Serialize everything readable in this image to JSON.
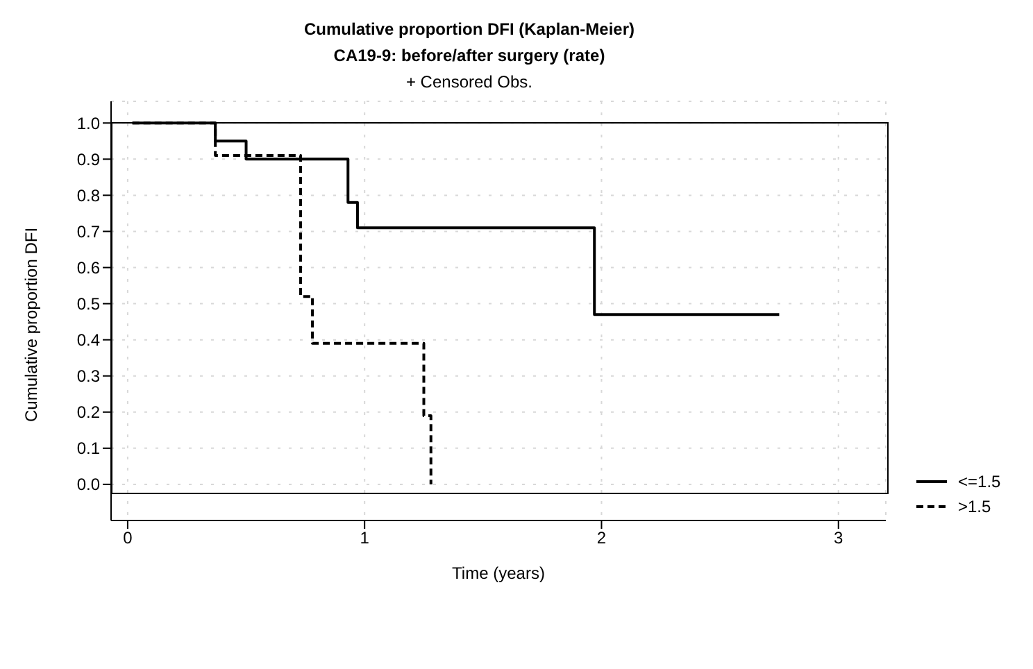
{
  "chart_data": {
    "type": "step",
    "title": "Cumulative proportion DFI (Kaplan-Meier)",
    "subtitle": "CA19-9: before/after surgery (rate)",
    "annotations": [
      "+ Censored Obs."
    ],
    "xlabel": "Time (years)",
    "ylabel": "Cumulative proportion DFI",
    "series": [
      {
        "name": "<=1.5",
        "color": "#000000",
        "line_style": "solid",
        "x": [
          0.02,
          0.37,
          0.5,
          0.93,
          0.97,
          1.97,
          2.75
        ],
        "values": [
          1,
          0.95,
          0.9,
          0.78,
          0.71,
          0.47,
          0.47
        ]
      },
      {
        "name": ">1.5",
        "color": "#000000",
        "line_style": "dashed",
        "x": [
          0.02,
          0.37,
          0.73,
          0.78,
          1.25,
          1.28,
          1.28
        ],
        "values": [
          1,
          0.91,
          0.52,
          0.39,
          0.19,
          0,
          0
        ]
      }
    ],
    "xlim": [
      -0.07,
      3.2
    ],
    "xticks": [
      0,
      1,
      2,
      3
    ],
    "ylim": [
      -0.1,
      1.06
    ],
    "yticks": [
      {
        "value": 0,
        "label": "0.0"
      },
      {
        "value": 0.1,
        "label": "0.1"
      },
      {
        "value": 0.2,
        "label": "0.2"
      },
      {
        "value": 0.3,
        "label": "0.3"
      },
      {
        "value": 0.4,
        "label": "0.4"
      },
      {
        "value": 0.5,
        "label": "0.5"
      },
      {
        "value": 0.6,
        "label": "0.6"
      },
      {
        "value": 0.7,
        "label": "0.7"
      },
      {
        "value": 0.8,
        "label": "0.8"
      },
      {
        "value": 0.9,
        "label": "0.9"
      },
      {
        "value": 1,
        "label": "1.0"
      }
    ],
    "grid": true,
    "legend": "bottom right",
    "marker": "none"
  }
}
